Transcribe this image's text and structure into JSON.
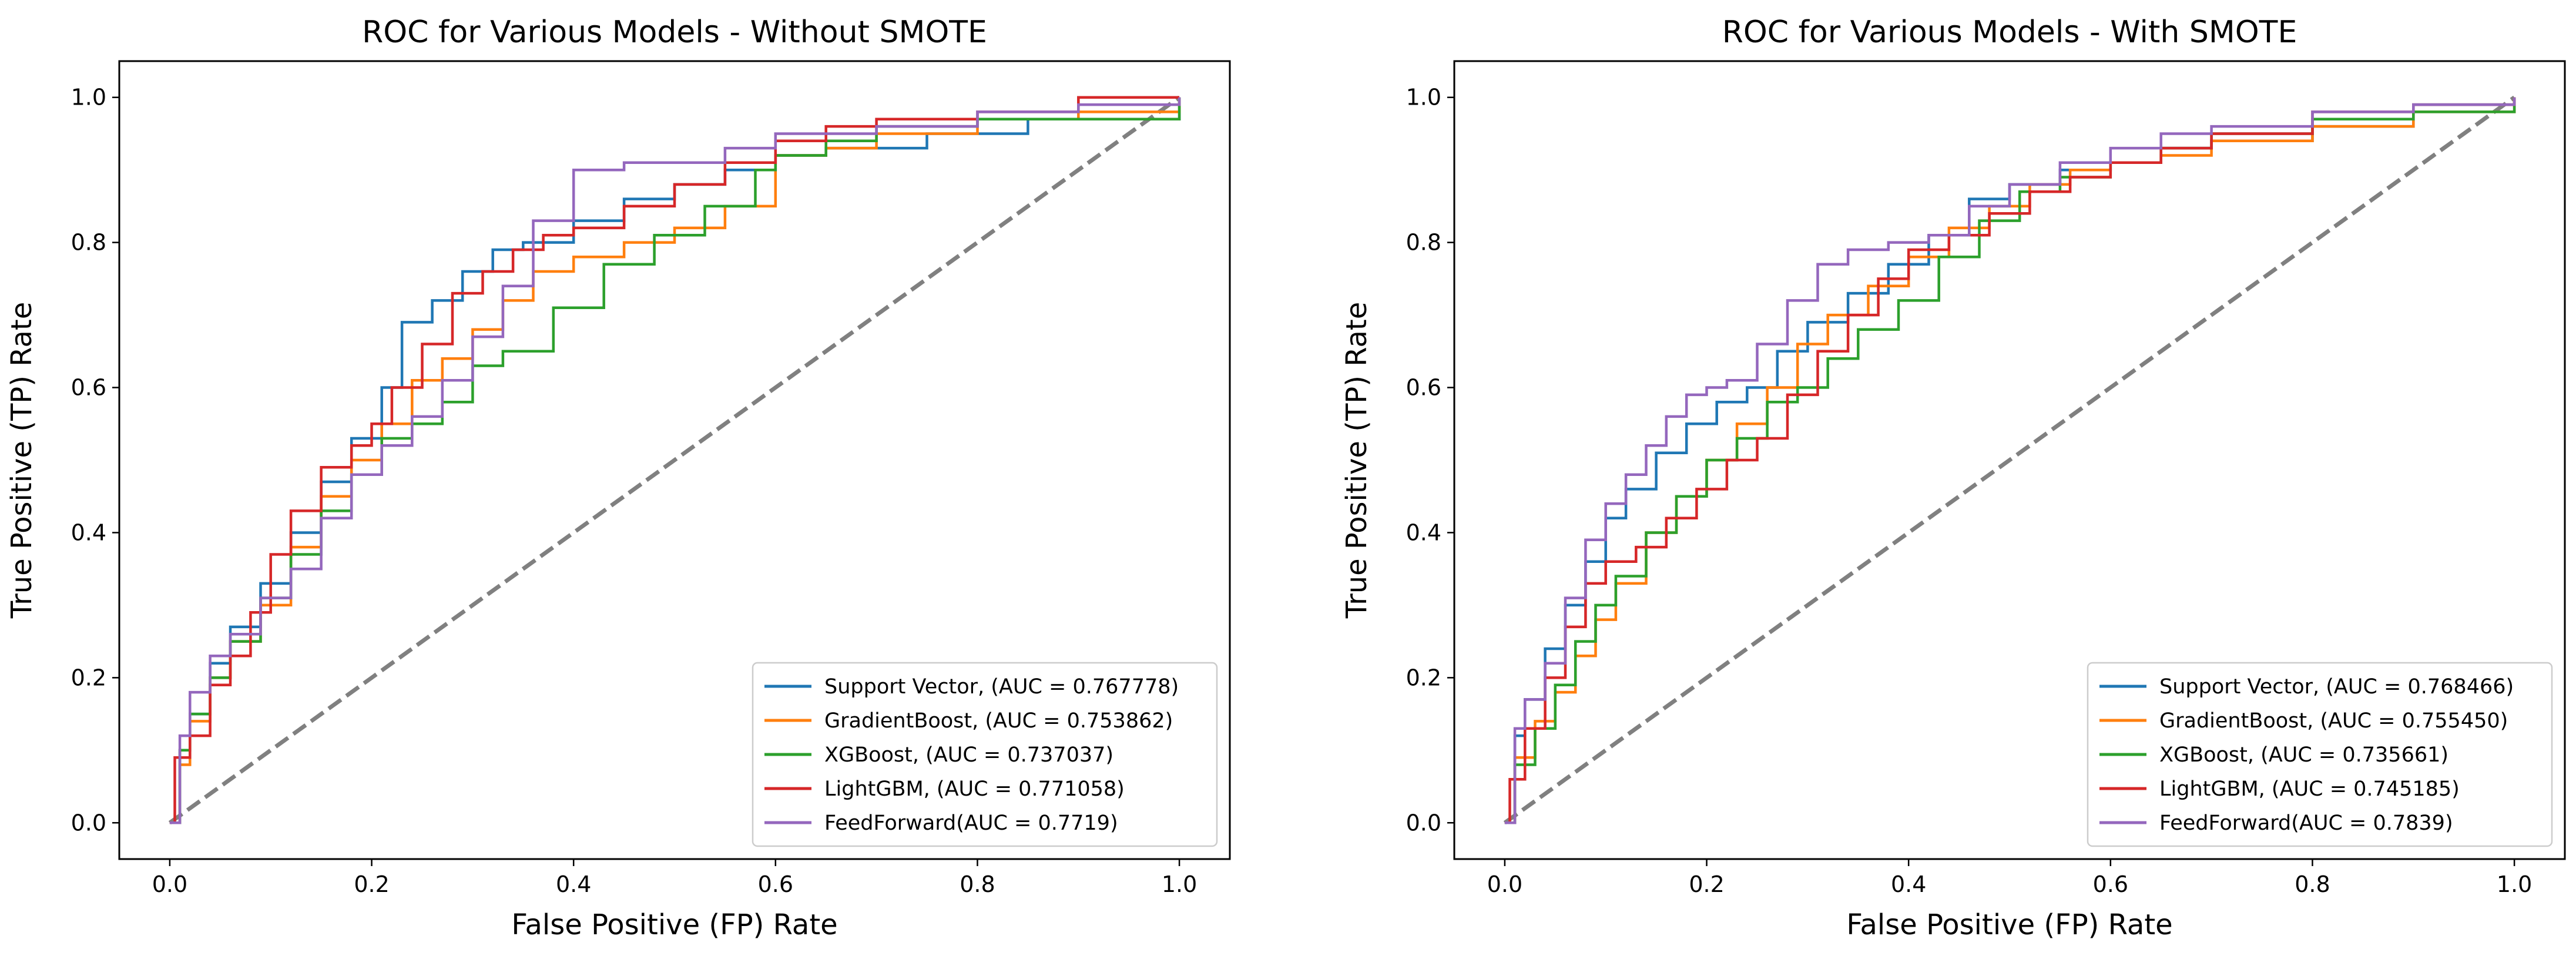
{
  "colors": {
    "Support Vector": "#1f77b4",
    "GradientBoost": "#ff7f0e",
    "XGBoost": "#2ca02c",
    "LightGBM": "#d62728",
    "FeedForward": "#9467bd",
    "diagonal": "#808080"
  },
  "chart_data": [
    {
      "type": "line",
      "title": "ROC for Various Models - Without SMOTE",
      "xlabel": "False Positive (FP) Rate",
      "ylabel": "True Positive (TP) Rate",
      "xlim": [
        -0.05,
        1.05
      ],
      "ylim": [
        -0.05,
        1.05
      ],
      "xticks": [
        "0.0",
        "0.2",
        "0.4",
        "0.6",
        "0.8",
        "1.0"
      ],
      "yticks": [
        "0.0",
        "0.2",
        "0.4",
        "0.6",
        "0.8",
        "1.0"
      ],
      "legend_position": "lower-right",
      "diagonal": {
        "x": [
          0,
          1
        ],
        "y": [
          0,
          1
        ],
        "style": "dashed"
      },
      "series": [
        {
          "name": "Support Vector",
          "label": "Support Vector, (AUC = 0.767778)",
          "x": [
            0,
            0.01,
            0.02,
            0.04,
            0.06,
            0.09,
            0.12,
            0.15,
            0.18,
            0.21,
            0.23,
            0.26,
            0.29,
            0.32,
            0.35,
            0.4,
            0.45,
            0.5,
            0.55,
            0.6,
            0.65,
            0.7,
            0.75,
            0.85,
            1.0
          ],
          "y": [
            0,
            0.1,
            0.15,
            0.22,
            0.27,
            0.33,
            0.4,
            0.47,
            0.53,
            0.6,
            0.69,
            0.72,
            0.76,
            0.79,
            0.8,
            0.83,
            0.86,
            0.88,
            0.9,
            0.92,
            0.93,
            0.93,
            0.95,
            0.97,
            1.0
          ]
        },
        {
          "name": "GradientBoost",
          "label": "GradientBoost, (AUC = 0.753862)",
          "x": [
            0,
            0.01,
            0.02,
            0.04,
            0.06,
            0.09,
            0.12,
            0.15,
            0.18,
            0.21,
            0.24,
            0.27,
            0.3,
            0.33,
            0.36,
            0.4,
            0.45,
            0.5,
            0.55,
            0.6,
            0.65,
            0.7,
            0.8,
            0.9,
            1.0
          ],
          "y": [
            0,
            0.08,
            0.14,
            0.2,
            0.25,
            0.3,
            0.38,
            0.45,
            0.5,
            0.55,
            0.61,
            0.64,
            0.68,
            0.72,
            0.76,
            0.78,
            0.8,
            0.82,
            0.85,
            0.92,
            0.93,
            0.95,
            0.97,
            0.98,
            1.0
          ]
        },
        {
          "name": "XGBoost",
          "label": "XGBoost, (AUC = 0.737037)",
          "x": [
            0,
            0.01,
            0.02,
            0.04,
            0.06,
            0.09,
            0.12,
            0.15,
            0.18,
            0.21,
            0.24,
            0.27,
            0.3,
            0.33,
            0.38,
            0.43,
            0.48,
            0.53,
            0.58,
            0.6,
            0.65,
            0.7,
            0.8,
            0.9,
            1.0
          ],
          "y": [
            0,
            0.1,
            0.15,
            0.2,
            0.25,
            0.31,
            0.37,
            0.43,
            0.48,
            0.53,
            0.55,
            0.58,
            0.63,
            0.65,
            0.71,
            0.77,
            0.81,
            0.85,
            0.9,
            0.92,
            0.94,
            0.96,
            0.97,
            0.97,
            1.0
          ]
        },
        {
          "name": "LightGBM",
          "label": "LightGBM, (AUC = 0.771058)",
          "x": [
            0,
            0.005,
            0.02,
            0.04,
            0.06,
            0.08,
            0.1,
            0.12,
            0.15,
            0.18,
            0.2,
            0.22,
            0.25,
            0.28,
            0.31,
            0.34,
            0.37,
            0.4,
            0.45,
            0.5,
            0.55,
            0.6,
            0.65,
            0.7,
            0.8,
            0.9,
            1.0
          ],
          "y": [
            0,
            0.09,
            0.12,
            0.19,
            0.23,
            0.29,
            0.37,
            0.43,
            0.49,
            0.52,
            0.55,
            0.6,
            0.66,
            0.73,
            0.76,
            0.79,
            0.81,
            0.82,
            0.85,
            0.88,
            0.91,
            0.94,
            0.96,
            0.97,
            0.98,
            1.0,
            1.0
          ]
        },
        {
          "name": "FeedForward",
          "label": "FeedForward(AUC = 0.7719)",
          "x": [
            0,
            0.01,
            0.02,
            0.04,
            0.06,
            0.09,
            0.12,
            0.15,
            0.18,
            0.21,
            0.24,
            0.27,
            0.3,
            0.33,
            0.36,
            0.4,
            0.45,
            0.5,
            0.55,
            0.6,
            0.65,
            0.7,
            0.8,
            0.9,
            1.0
          ],
          "y": [
            0,
            0.12,
            0.18,
            0.23,
            0.26,
            0.31,
            0.35,
            0.42,
            0.48,
            0.52,
            0.56,
            0.61,
            0.67,
            0.74,
            0.83,
            0.9,
            0.91,
            0.91,
            0.93,
            0.95,
            0.95,
            0.96,
            0.98,
            0.99,
            1.0
          ]
        }
      ]
    },
    {
      "type": "line",
      "title": "ROC for Various Models - With SMOTE",
      "xlabel": "False Positive (FP) Rate",
      "ylabel": "True Positive (TP) Rate",
      "xlim": [
        -0.05,
        1.05
      ],
      "ylim": [
        -0.05,
        1.05
      ],
      "xticks": [
        "0.0",
        "0.2",
        "0.4",
        "0.6",
        "0.8",
        "1.0"
      ],
      "yticks": [
        "0.0",
        "0.2",
        "0.4",
        "0.6",
        "0.8",
        "1.0"
      ],
      "legend_position": "lower-right",
      "diagonal": {
        "x": [
          0,
          1
        ],
        "y": [
          0,
          1
        ],
        "style": "dashed"
      },
      "series": [
        {
          "name": "Support Vector",
          "label": "Support Vector, (AUC = 0.768466)",
          "x": [
            0,
            0.01,
            0.02,
            0.04,
            0.06,
            0.08,
            0.1,
            0.12,
            0.15,
            0.18,
            0.21,
            0.24,
            0.27,
            0.3,
            0.34,
            0.38,
            0.42,
            0.46,
            0.5,
            0.55,
            0.6,
            0.65,
            0.7,
            0.8,
            0.9,
            1.0
          ],
          "y": [
            0,
            0.12,
            0.17,
            0.24,
            0.3,
            0.36,
            0.42,
            0.46,
            0.51,
            0.55,
            0.58,
            0.6,
            0.65,
            0.69,
            0.73,
            0.77,
            0.81,
            0.86,
            0.88,
            0.9,
            0.91,
            0.93,
            0.94,
            0.96,
            0.99,
            1.0
          ]
        },
        {
          "name": "GradientBoost",
          "label": "GradientBoost, (AUC = 0.755450)",
          "x": [
            0,
            0.01,
            0.03,
            0.05,
            0.07,
            0.09,
            0.11,
            0.14,
            0.17,
            0.2,
            0.23,
            0.26,
            0.29,
            0.32,
            0.36,
            0.4,
            0.44,
            0.48,
            0.52,
            0.56,
            0.6,
            0.65,
            0.7,
            0.8,
            0.9,
            1.0
          ],
          "y": [
            0,
            0.09,
            0.14,
            0.18,
            0.23,
            0.28,
            0.33,
            0.4,
            0.45,
            0.5,
            0.55,
            0.6,
            0.66,
            0.7,
            0.74,
            0.78,
            0.82,
            0.85,
            0.88,
            0.9,
            0.91,
            0.92,
            0.94,
            0.96,
            0.98,
            1.0
          ]
        },
        {
          "name": "XGBoost",
          "label": "XGBoost, (AUC = 0.735661)",
          "x": [
            0,
            0.01,
            0.03,
            0.05,
            0.07,
            0.09,
            0.11,
            0.14,
            0.17,
            0.2,
            0.23,
            0.26,
            0.29,
            0.32,
            0.35,
            0.39,
            0.43,
            0.47,
            0.51,
            0.55,
            0.6,
            0.65,
            0.7,
            0.8,
            0.9,
            1.0
          ],
          "y": [
            0,
            0.08,
            0.13,
            0.19,
            0.25,
            0.3,
            0.34,
            0.4,
            0.45,
            0.5,
            0.53,
            0.58,
            0.6,
            0.64,
            0.68,
            0.72,
            0.78,
            0.83,
            0.87,
            0.89,
            0.91,
            0.93,
            0.95,
            0.97,
            0.98,
            1.0
          ]
        },
        {
          "name": "LightGBM",
          "label": "LightGBM, (AUC = 0.745185)",
          "x": [
            0,
            0.005,
            0.02,
            0.04,
            0.06,
            0.08,
            0.1,
            0.13,
            0.16,
            0.19,
            0.22,
            0.25,
            0.28,
            0.31,
            0.34,
            0.37,
            0.4,
            0.44,
            0.48,
            0.52,
            0.56,
            0.6,
            0.65,
            0.7,
            0.8,
            0.9,
            1.0
          ],
          "y": [
            0,
            0.06,
            0.13,
            0.2,
            0.27,
            0.33,
            0.36,
            0.38,
            0.42,
            0.46,
            0.5,
            0.53,
            0.59,
            0.65,
            0.7,
            0.75,
            0.79,
            0.81,
            0.84,
            0.87,
            0.89,
            0.91,
            0.93,
            0.95,
            0.98,
            0.99,
            1.0
          ]
        },
        {
          "name": "FeedForward",
          "label": "FeedForward(AUC = 0.7839)",
          "x": [
            0,
            0.01,
            0.02,
            0.04,
            0.06,
            0.08,
            0.1,
            0.12,
            0.14,
            0.16,
            0.18,
            0.2,
            0.22,
            0.25,
            0.28,
            0.31,
            0.34,
            0.38,
            0.42,
            0.46,
            0.5,
            0.55,
            0.6,
            0.65,
            0.7,
            0.8,
            0.9,
            1.0
          ],
          "y": [
            0,
            0.13,
            0.17,
            0.22,
            0.31,
            0.39,
            0.44,
            0.48,
            0.52,
            0.56,
            0.59,
            0.6,
            0.61,
            0.66,
            0.72,
            0.77,
            0.79,
            0.8,
            0.81,
            0.85,
            0.88,
            0.91,
            0.93,
            0.95,
            0.96,
            0.98,
            0.99,
            1.0
          ]
        }
      ]
    }
  ]
}
